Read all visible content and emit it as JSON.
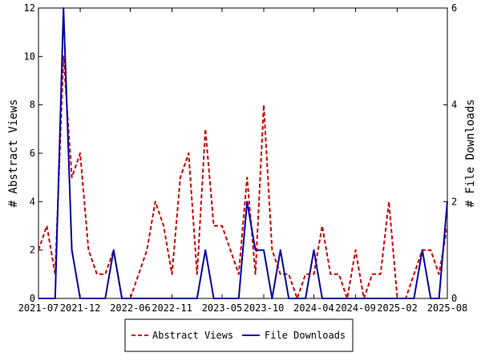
{
  "chart_data": {
    "type": "line",
    "title": "",
    "x_tick_labels": [
      "2021-07",
      "2021-12",
      "2022-06",
      "2022-11",
      "2023-05",
      "2023-10",
      "2024-04",
      "2024-09",
      "2025-02",
      "2025-08"
    ],
    "y_left": {
      "label": "# Abstract Views",
      "range": [
        0,
        12
      ],
      "ticks": [
        "0",
        "2",
        "4",
        "6",
        "8",
        "10",
        "12"
      ]
    },
    "y_right": {
      "label": "# File Downloads",
      "range": [
        0,
        6
      ],
      "ticks": [
        "0",
        "2",
        "4",
        "6"
      ]
    },
    "x_months": [
      "2021-07",
      "2021-08",
      "2021-09",
      "2021-10",
      "2021-11",
      "2021-12",
      "2022-01",
      "2022-02",
      "2022-03",
      "2022-04",
      "2022-05",
      "2022-06",
      "2022-07",
      "2022-08",
      "2022-09",
      "2022-10",
      "2022-11",
      "2022-12",
      "2023-01",
      "2023-02",
      "2023-03",
      "2023-04",
      "2023-05",
      "2023-06",
      "2023-07",
      "2023-08",
      "2023-09",
      "2023-10",
      "2023-11",
      "2023-12",
      "2024-01",
      "2024-02",
      "2024-03",
      "2024-04",
      "2024-05",
      "2024-06",
      "2024-07",
      "2024-08",
      "2024-09",
      "2024-10",
      "2024-11",
      "2024-12",
      "2025-01",
      "2025-02",
      "2025-03",
      "2025-04",
      "2025-05",
      "2025-06",
      "2025-07",
      "2025-08"
    ],
    "series": [
      {
        "name": "Abstract Views",
        "axis": "left",
        "color": "#cc0000",
        "dash": true,
        "values": [
          2,
          3,
          1,
          10,
          5,
          6,
          2,
          1,
          1,
          2,
          0,
          0,
          1,
          2,
          4,
          3,
          1,
          5,
          6,
          1,
          7,
          3,
          3,
          2,
          1,
          5,
          1,
          8,
          2,
          1,
          1,
          0,
          1,
          1,
          3,
          1,
          1,
          0,
          2,
          0,
          1,
          1,
          4,
          0,
          0,
          1,
          2,
          2,
          1,
          3
        ]
      },
      {
        "name": "File Downloads",
        "axis": "right",
        "color": "#0000aa",
        "dash": false,
        "values": [
          0,
          0,
          0,
          6,
          1,
          0,
          0,
          0,
          0,
          1,
          0,
          0,
          0,
          0,
          0,
          0,
          0,
          0,
          0,
          0,
          1,
          0,
          0,
          0,
          0,
          2,
          1,
          1,
          0,
          1,
          0,
          0,
          0,
          1,
          0,
          0,
          0,
          0,
          0,
          0,
          0,
          0,
          0,
          0,
          0,
          0,
          1,
          0,
          0,
          2
        ]
      }
    ],
    "legend_position": "bottom-center",
    "grid": false
  }
}
